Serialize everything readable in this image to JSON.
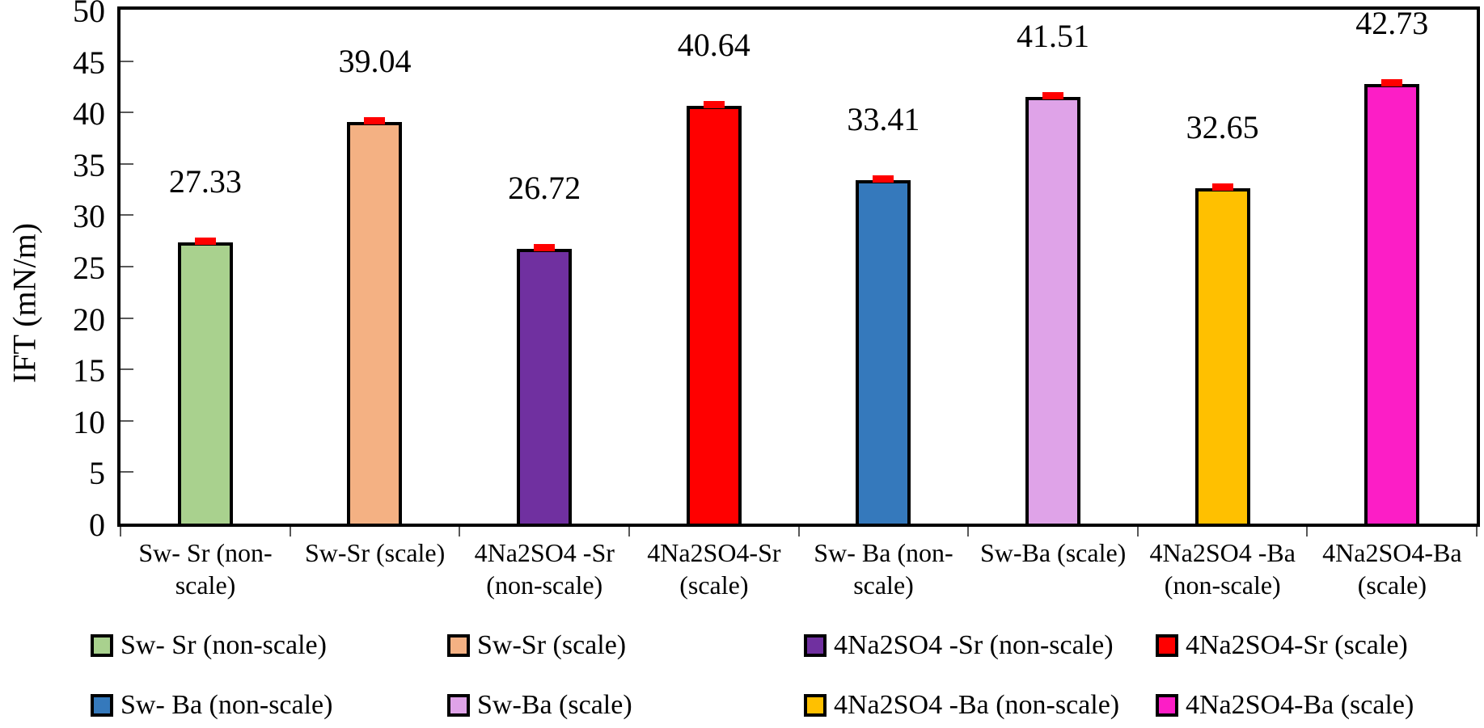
{
  "chart_data": {
    "type": "bar",
    "title": "",
    "xlabel": "",
    "ylabel": "IFT (mN/m)",
    "ylim": [
      0,
      50
    ],
    "ytick_step": 5,
    "yticks": [
      "0",
      "5",
      "10",
      "15",
      "20",
      "25",
      "30",
      "35",
      "40",
      "45",
      "50"
    ],
    "grid": false,
    "background": "#FFFFFF",
    "axis_color": "#000000",
    "tick_color": "#595959",
    "categories": [
      "Sw- Sr (non-scale)",
      "Sw-Sr (scale)",
      "4Na2SO4 -Sr (non-scale)",
      "4Na2SO4-Sr (scale)",
      "Sw- Ba (non-scale)",
      "Sw-Ba (scale)",
      "4Na2SO4 -Ba (non-scale)",
      "4Na2SO4-Ba (scale)"
    ],
    "category_label_lines": [
      [
        "Sw- Sr (non-",
        "scale)"
      ],
      [
        "Sw-Sr (scale)"
      ],
      [
        "4Na2SO4 -Sr",
        "(non-scale)"
      ],
      [
        "4Na2SO4-Sr",
        "(scale)"
      ],
      [
        "Sw- Ba (non-",
        "scale)"
      ],
      [
        "Sw-Ba (scale)"
      ],
      [
        "4Na2SO4 -Ba",
        "(non-scale)"
      ],
      [
        "4Na2SO4-Ba",
        "(scale)"
      ]
    ],
    "values": [
      27.33,
      39.04,
      26.72,
      40.64,
      33.41,
      41.51,
      32.65,
      42.73
    ],
    "value_labels": [
      "27.33",
      "39.04",
      "26.72",
      "40.64",
      "33.41",
      "41.51",
      "32.65",
      "42.73"
    ],
    "bar_colors": [
      "#A9D18E",
      "#F4B183",
      "#7030A0",
      "#FF0000",
      "#3579BC",
      "#DFA3E8",
      "#FFC000",
      "#FC1EC6"
    ],
    "bar_border_color": "#000000",
    "error_bars_shown": true,
    "error_bar_color": "#FF0000",
    "legend": {
      "position": "bottom",
      "rows": [
        [
          {
            "label": "Sw- Sr (non-scale)",
            "color": "#A9D18E"
          },
          {
            "label": "Sw-Sr (scale)",
            "color": "#F4B183"
          },
          {
            "label": "4Na2SO4 -Sr (non-scale)",
            "color": "#7030A0"
          },
          {
            "label": "4Na2SO4-Sr (scale)",
            "color": "#FF0000"
          }
        ],
        [
          {
            "label": "Sw- Ba (non-scale)",
            "color": "#3579BC"
          },
          {
            "label": "Sw-Ba (scale)",
            "color": "#DFA3E8"
          },
          {
            "label": "4Na2SO4 -Ba (non-scale)",
            "color": "#FFC000"
          },
          {
            "label": "4Na2SO4-Ba (scale)",
            "color": "#FC1EC6"
          }
        ]
      ]
    }
  }
}
